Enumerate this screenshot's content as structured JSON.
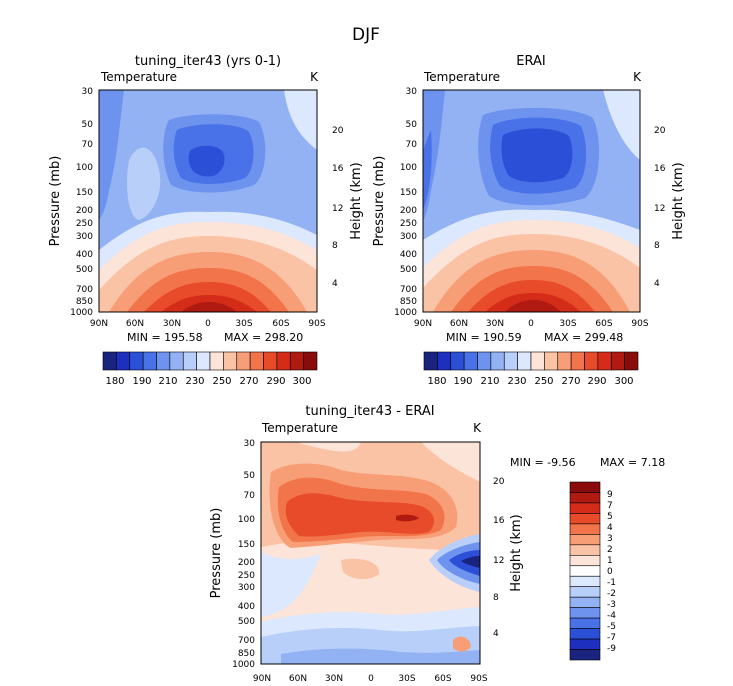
{
  "page_title": "DJF",
  "colors": {
    "blues": [
      "#1a237e",
      "#1c2fbf",
      "#2c4fd8",
      "#4a72e8",
      "#6d93ef",
      "#92b2f4",
      "#b8cffa",
      "#dbe8fd"
    ],
    "neutral": "#fefefe",
    "reds": [
      "#fde4d8",
      "#fbc3a6",
      "#f89e76",
      "#f2744a",
      "#e84b29",
      "#d42c18",
      "#b01a10",
      "#8a0c0a"
    ]
  },
  "chart_data": [
    {
      "id": "panel-model",
      "type": "heatmap",
      "title": "tuning_iter43 (yrs 0-1)",
      "variable": "Temperature",
      "units": "K",
      "xlabel": "",
      "ylabel": "Pressure (mb)",
      "ylabel_right": "Height (km)",
      "x_ticks": [
        "90N",
        "60N",
        "30N",
        "0",
        "30S",
        "60S",
        "90S"
      ],
      "y_ticks": [
        "30",
        "50",
        "70",
        "100",
        "150",
        "200",
        "250",
        "300",
        "400",
        "500",
        "700",
        "850",
        "1000"
      ],
      "y_ticks_right": [
        "20",
        "16",
        "12",
        "8",
        "4"
      ],
      "min_label": "MIN = 195.58",
      "max_label": "MAX = 298.20",
      "min": 195.58,
      "max": 298.2,
      "colorbar_ticks": [
        "180",
        "190",
        "210",
        "230",
        "250",
        "270",
        "290",
        "300"
      ]
    },
    {
      "id": "panel-erai",
      "type": "heatmap",
      "title": "ERAI",
      "variable": "Temperature",
      "units": "K",
      "xlabel": "",
      "ylabel": "Pressure (mb)",
      "ylabel_right": "Height (km)",
      "x_ticks": [
        "90N",
        "60N",
        "30N",
        "0",
        "30S",
        "60S",
        "90S"
      ],
      "y_ticks": [
        "30",
        "50",
        "70",
        "100",
        "150",
        "200",
        "250",
        "300",
        "400",
        "500",
        "700",
        "850",
        "1000"
      ],
      "y_ticks_right": [
        "20",
        "16",
        "12",
        "8",
        "4"
      ],
      "min_label": "MIN = 190.59",
      "max_label": "MAX = 299.48",
      "min": 190.59,
      "max": 299.48,
      "colorbar_ticks": [
        "180",
        "190",
        "210",
        "230",
        "250",
        "270",
        "290",
        "300"
      ]
    },
    {
      "id": "panel-diff",
      "type": "heatmap",
      "title": "tuning_iter43 - ERAI",
      "variable": "Temperature",
      "units": "K",
      "xlabel": "",
      "ylabel": "Pressure (mb)",
      "ylabel_right": "Height (km)",
      "x_ticks": [
        "90N",
        "60N",
        "30N",
        "0",
        "30S",
        "60S",
        "90S"
      ],
      "y_ticks": [
        "30",
        "50",
        "70",
        "100",
        "150",
        "200",
        "250",
        "300",
        "400",
        "500",
        "700",
        "850",
        "1000"
      ],
      "y_ticks_right": [
        "20",
        "16",
        "12",
        "8",
        "4"
      ],
      "min_label": "MIN =  -9.56",
      "max_label": "MAX =   7.18",
      "min": -9.56,
      "max": 7.18,
      "colorbar_ticks": [
        "9",
        "7",
        "5",
        "4",
        "3",
        "2",
        "1",
        "0",
        "-1",
        "-2",
        "-3",
        "-4",
        "-5",
        "-7",
        "-9"
      ]
    }
  ]
}
